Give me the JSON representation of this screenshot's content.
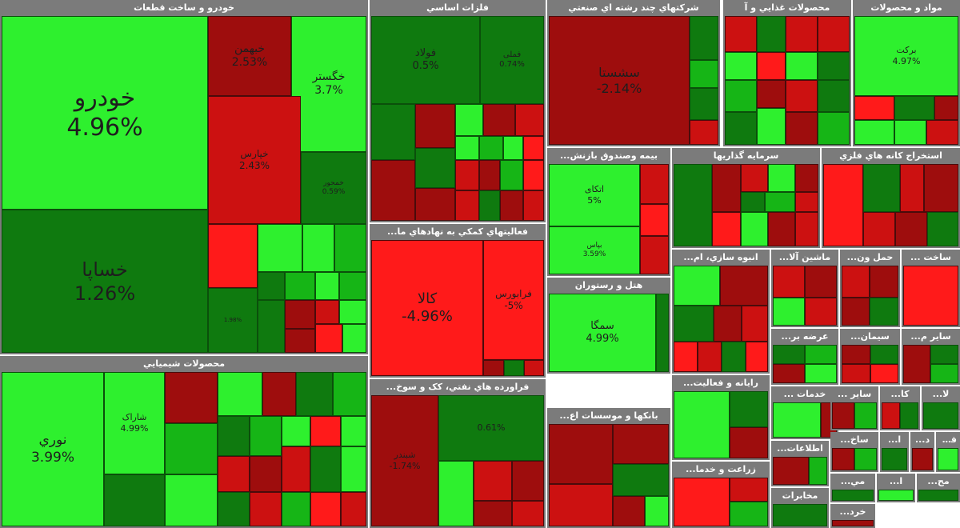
{
  "colors": {
    "sector_bg": "#7b7b7b",
    "up_strong": "#2ef02e",
    "up": "#16b516",
    "up_dark": "#0f7a0f",
    "down_strong": "#ff1a1a",
    "down": "#cc1111",
    "down_dark": "#9e0d0d"
  },
  "chart_data": {
    "type": "treemap",
    "title": "",
    "sectors": [
      {
        "name": "خودرو و ساخت قطعات",
        "tiles": [
          {
            "name": "خودرو",
            "value": 4.96
          },
          {
            "name": "خساپا",
            "value": 1.26
          },
          {
            "name": "خبهمن",
            "value": 2.53
          },
          {
            "name": "خگستر",
            "value": 3.7
          },
          {
            "name": "خپارس",
            "value": 2.43
          },
          {
            "name": "خمحور",
            "value": 0.59
          },
          {
            "name": "",
            "value": 1.98
          }
        ]
      },
      {
        "name": "فلزات اساسي",
        "tiles": [
          {
            "name": "فولاد",
            "value": 0.5
          },
          {
            "name": "فملی",
            "value": 0.74
          }
        ]
      },
      {
        "name": "شركتهاي چند رشته اي صنعتي",
        "tiles": [
          {
            "name": "سشستا",
            "value": -2.14
          }
        ]
      },
      {
        "name": "محصولات غذايي و آ",
        "tiles": []
      },
      {
        "name": "مواد و محصولات",
        "tiles": [
          {
            "name": "برکت",
            "value": 4.97
          }
        ]
      },
      {
        "name": "بيمه وصندوق بازنش...",
        "tiles": [
          {
            "name": "اتکای",
            "value": 5
          },
          {
            "name": "بپاس",
            "value": 3.59
          }
        ]
      },
      {
        "name": "سرمايه گذاريها",
        "tiles": []
      },
      {
        "name": "استخراج كانه هاي فلزي",
        "tiles": []
      },
      {
        "name": "فعاليتهاي كمكي به نهادهاي ما...",
        "tiles": [
          {
            "name": "کالا",
            "value": -4.96
          },
          {
            "name": "فرابورس",
            "value": -5
          }
        ]
      },
      {
        "name": "محصولات شيميايي",
        "tiles": [
          {
            "name": "نوري",
            "value": 3.99
          },
          {
            "name": "شاراک",
            "value": 4.99
          }
        ]
      },
      {
        "name": "هتل و رستوران",
        "tiles": [
          {
            "name": "سمگا",
            "value": 4.99
          }
        ]
      },
      {
        "name": "فراورده هاي نفتي، كک و سوخ...",
        "tiles": [
          {
            "name": "شبندر",
            "value": -1.74
          },
          {
            "name": "",
            "value": 0.61
          }
        ]
      },
      {
        "name": "بانكها و موسسات اع...",
        "tiles": []
      },
      {
        "name": "انبوه سازي، ام...",
        "tiles": []
      },
      {
        "name": "ماشين آلا...",
        "tiles": []
      },
      {
        "name": "حمل ون...",
        "tiles": []
      },
      {
        "name": "ساخت ...",
        "tiles": []
      },
      {
        "name": "رايانه و فعاليت...",
        "tiles": []
      },
      {
        "name": "عرضه بر...",
        "tiles": []
      },
      {
        "name": "سيمان...",
        "tiles": []
      },
      {
        "name": "ساير م...",
        "tiles": []
      },
      {
        "name": "زراعت و خدما...",
        "tiles": []
      },
      {
        "name": "خدمات ...",
        "tiles": []
      },
      {
        "name": "ساير ...",
        "tiles": []
      },
      {
        "name": "كا...",
        "tiles": []
      },
      {
        "name": "لا...",
        "tiles": []
      },
      {
        "name": "اطلاعات...",
        "tiles": []
      },
      {
        "name": "مخابرات",
        "tiles": []
      },
      {
        "name": "ساخ...",
        "tiles": []
      },
      {
        "name": "ا...",
        "tiles": []
      },
      {
        "name": "د...",
        "tiles": []
      },
      {
        "name": "قند و...",
        "tiles": []
      },
      {
        "name": "مي...",
        "tiles": []
      },
      {
        "name": "ا...",
        "tiles": []
      },
      {
        "name": "مح...",
        "tiles": []
      },
      {
        "name": "خرد...",
        "tiles": []
      }
    ]
  }
}
